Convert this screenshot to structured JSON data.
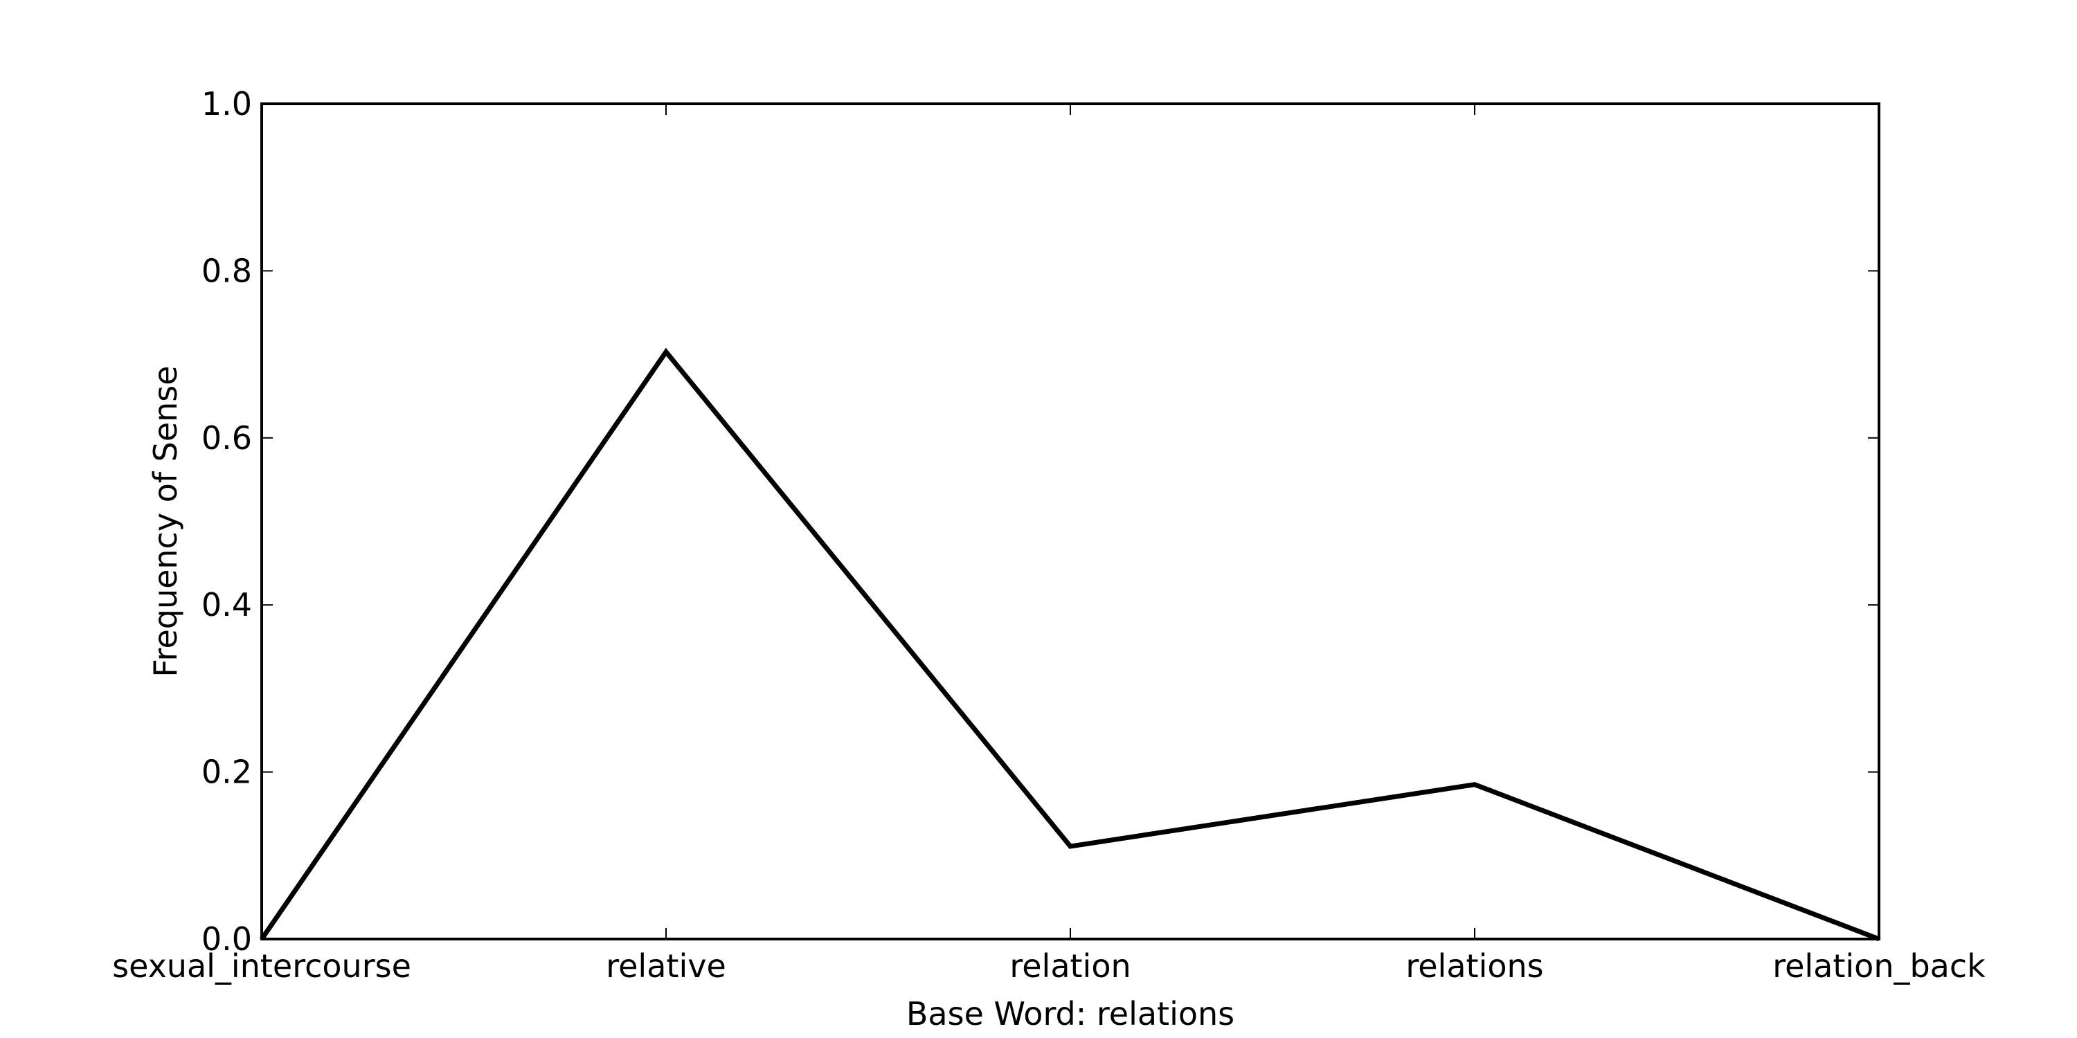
{
  "chart_data": {
    "type": "line",
    "title": "",
    "xlabel": "Base Word: relations",
    "ylabel": "Frequency of Sense",
    "categories": [
      "sexual_intercourse",
      "relative",
      "relation",
      "relations",
      "relation_back"
    ],
    "series": [
      {
        "values": [
          0.0,
          0.703,
          0.111,
          0.185,
          0.0
        ]
      }
    ],
    "ylim": [
      0.0,
      1.0
    ],
    "yticks": [
      "0.0",
      "0.2",
      "0.4",
      "0.6",
      "0.8",
      "1.0"
    ],
    "grid": false,
    "legend": "none",
    "line_color": "#000000"
  }
}
